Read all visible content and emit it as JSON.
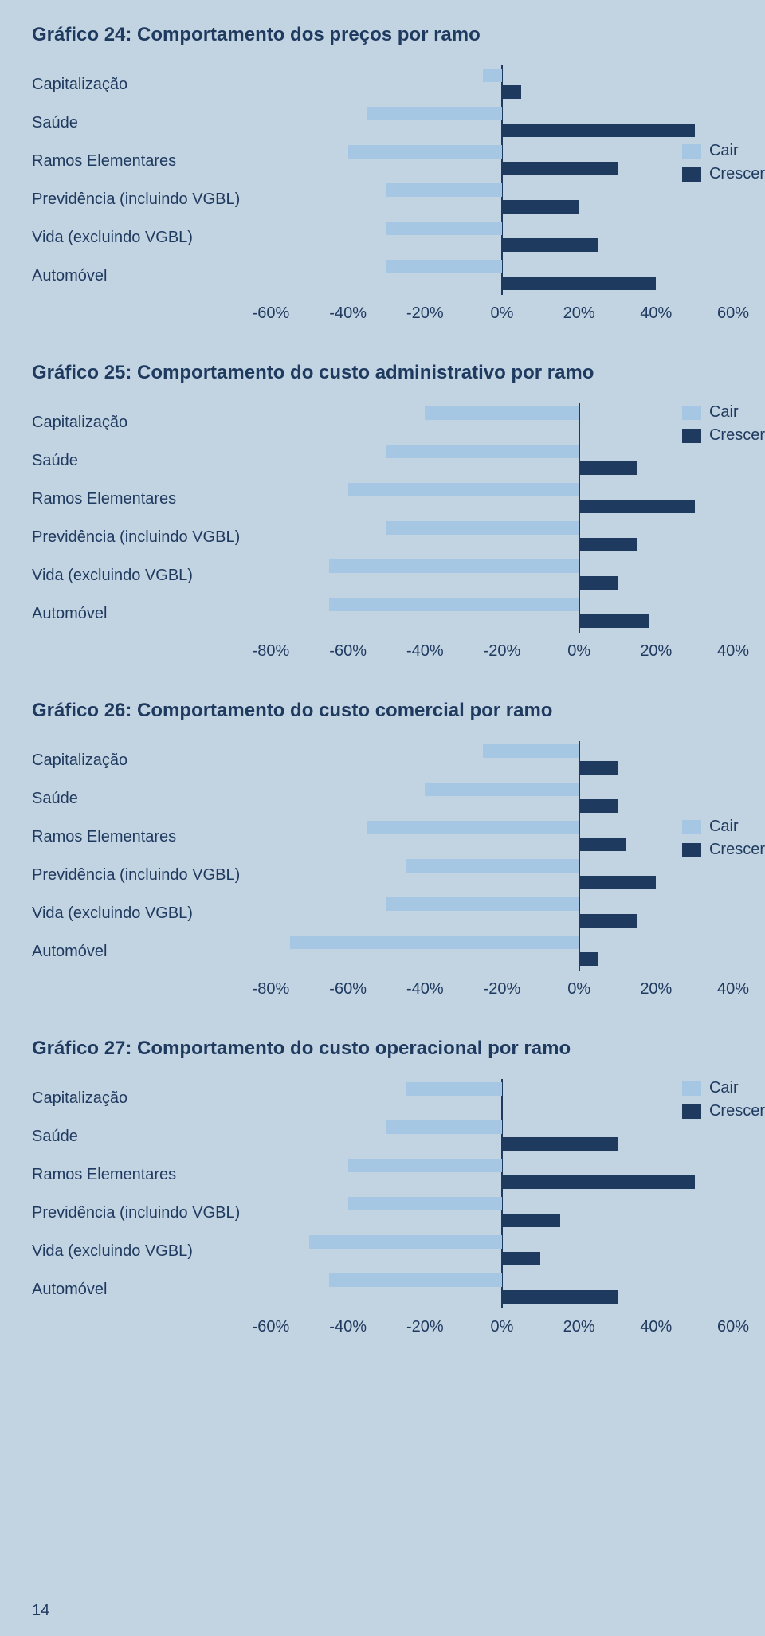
{
  "page_number": "14",
  "colors": {
    "background": "#c2d3e2",
    "text": "#1f3a5f",
    "baseline": "#1f3a5f",
    "cair": "#a5c7e3",
    "crescer": "#1f3a5f"
  },
  "legend": {
    "cair": "Cair",
    "crescer": "Crescer"
  },
  "charts": [
    {
      "id": "c24",
      "title": "Gráfico 24: Comportamento dos preços por ramo",
      "xmin": -60,
      "xmax": 60,
      "tick_step": 20,
      "legend_row": 2,
      "categories": [
        {
          "label": "Capitalização",
          "cair": -5,
          "crescer": 5
        },
        {
          "label": "Saúde",
          "cair": -35,
          "crescer": 50
        },
        {
          "label": "Ramos Elementares",
          "cair": -40,
          "crescer": 30
        },
        {
          "label": "Previdência (incluindo VGBL)",
          "cair": -30,
          "crescer": 20
        },
        {
          "label": "Vida (excluindo VGBL)",
          "cair": -30,
          "crescer": 25
        },
        {
          "label": "Automóvel",
          "cair": -30,
          "crescer": 40
        }
      ]
    },
    {
      "id": "c25",
      "title": "Gráfico 25: Comportamento do custo administrativo por ramo",
      "xmin": -80,
      "xmax": 40,
      "tick_step": 20,
      "legend_row": 0,
      "categories": [
        {
          "label": "Capitalização",
          "cair": -40,
          "crescer": 0
        },
        {
          "label": "Saúde",
          "cair": -50,
          "crescer": 15
        },
        {
          "label": "Ramos Elementares",
          "cair": -60,
          "crescer": 30
        },
        {
          "label": "Previdência (incluindo VGBL)",
          "cair": -50,
          "crescer": 15
        },
        {
          "label": "Vida (excluindo VGBL)",
          "cair": -65,
          "crescer": 10
        },
        {
          "label": "Automóvel",
          "cair": -65,
          "crescer": 18
        }
      ]
    },
    {
      "id": "c26",
      "title": "Gráfico 26: Comportamento do custo comercial por ramo",
      "xmin": -80,
      "xmax": 40,
      "tick_step": 20,
      "legend_row": 2,
      "categories": [
        {
          "label": "Capitalização",
          "cair": -25,
          "crescer": 10
        },
        {
          "label": "Saúde",
          "cair": -40,
          "crescer": 10
        },
        {
          "label": "Ramos Elementares",
          "cair": -55,
          "crescer": 12
        },
        {
          "label": "Previdência (incluindo VGBL)",
          "cair": -45,
          "crescer": 20
        },
        {
          "label": "Vida (excluindo VGBL)",
          "cair": -50,
          "crescer": 15
        },
        {
          "label": "Automóvel",
          "cair": -75,
          "crescer": 5
        }
      ]
    },
    {
      "id": "c27",
      "title": "Gráfico 27: Comportamento do custo operacional por ramo",
      "xmin": -60,
      "xmax": 60,
      "tick_step": 20,
      "legend_row": 0,
      "categories": [
        {
          "label": "Capitalização",
          "cair": -25,
          "crescer": 0
        },
        {
          "label": "Saúde",
          "cair": -30,
          "crescer": 30
        },
        {
          "label": "Ramos Elementares",
          "cair": -40,
          "crescer": 50
        },
        {
          "label": "Previdência (incluindo VGBL)",
          "cair": -40,
          "crescer": 15
        },
        {
          "label": "Vida (excluindo VGBL)",
          "cair": -50,
          "crescer": 10
        },
        {
          "label": "Automóvel",
          "cair": -45,
          "crescer": 30
        }
      ]
    }
  ]
}
